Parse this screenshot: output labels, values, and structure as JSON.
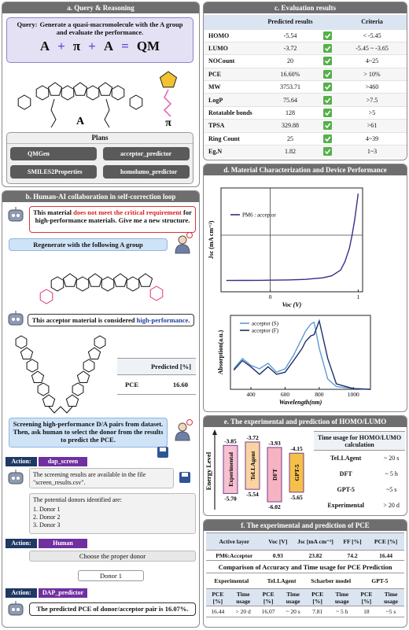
{
  "panel_a": {
    "title": "a. Query & Reasoning",
    "query": {
      "label": "Query:",
      "text": "Generate a quasi-macromolecule with the A group and evaluate the performance."
    },
    "equation": [
      "A",
      "+",
      "π",
      "+",
      "A",
      "=",
      "QM"
    ],
    "molecule_labels": {
      "acceptor": "A",
      "bridge": "π"
    },
    "plans": {
      "title": "Plans",
      "tools": [
        "QMGen",
        "acceptor_predictor",
        "SMILES2Properties",
        "homolumo_predictor"
      ]
    }
  },
  "panel_b": {
    "title": "b. Human-AI collaboration in self-correction loop",
    "msg1": [
      "This material ",
      "does not meet the critical requirement",
      " for high-performance materials. Give me a new structure."
    ],
    "msg2": "Regenerate with the following A  group",
    "msg3": [
      "This acceptor material is considered ",
      "high-performance",
      "."
    ],
    "predicted": {
      "header": "Predicted [%]",
      "row": [
        "PCE",
        "16.60"
      ]
    },
    "msg4": "Screening high-performance D/A pairs from dataset. Then, ask human to select the donor from the results  to predict the PCE.",
    "action1": {
      "label": "Action:",
      "name": "dap_screen"
    },
    "msg5": "The screening results are available in the file \"screen_results.csv\".",
    "msg6": {
      "intro": "The potential donors identified are:",
      "items": [
        "1. Donor 1",
        "2. Donor 2",
        "3. Donor 3"
      ]
    },
    "action2": {
      "label": "Action:",
      "name": "Human"
    },
    "msg7": "Choose the proper donor",
    "msg8": "Donor 1",
    "action3": {
      "label": "Action:",
      "name": "DAP_predictor"
    },
    "msg9": "The predicted PCE of donor/acceptor pair is 16.07%."
  },
  "panel_c": {
    "title": "c. Evaluation results",
    "headers": [
      "Predicted results",
      "Criteria"
    ],
    "rows": [
      [
        "HOMO",
        "-5.54",
        "< -5.45"
      ],
      [
        "LUMO",
        "-3.72",
        "-5.45 ~ -3.65"
      ],
      [
        "NOCount",
        "20",
        "4~25"
      ],
      [
        "PCE",
        "16.60%",
        "> 10%"
      ],
      [
        "MW",
        "3753.71",
        ">460"
      ],
      [
        "LogP",
        "75.64",
        ">7.5"
      ],
      [
        "Rotatable bonds",
        "128",
        ">5"
      ],
      [
        "TPSA",
        "329.88",
        ">61"
      ],
      [
        "Ring Count",
        "25",
        "4~39"
      ],
      [
        "Eg,N",
        "1.82",
        "1~3"
      ]
    ]
  },
  "panel_d": {
    "title": "d. Material Characterization and Device Performance",
    "jv_chart": {
      "type": "line",
      "x_label": "Voc (V)",
      "y_label": "Jsc (mA cm⁻²)",
      "x": [
        -0.5,
        -0.3,
        -0.1,
        0,
        0.2,
        0.4,
        0.6,
        0.7,
        0.8,
        0.85,
        0.9,
        0.93,
        0.96,
        1.0
      ],
      "series": [
        {
          "name": "PM6 : acceptor",
          "color": "#3b2a8a",
          "values": [
            -24.0,
            -23.95,
            -23.9,
            -23.82,
            -23.7,
            -23.4,
            -22.6,
            -21.5,
            -18.5,
            -14,
            -7,
            0,
            8,
            22
          ]
        }
      ],
      "xlim": [
        -0.56,
        1.05
      ],
      "ylim": [
        -30,
        25
      ],
      "xticks": [
        0,
        1
      ]
    },
    "abs_chart": {
      "type": "line",
      "x_label": "Wavelength(nm)",
      "y_label": "Absorption(a.u.)",
      "x": [
        300,
        350,
        400,
        450,
        500,
        550,
        600,
        650,
        700,
        720,
        750,
        770,
        800,
        850,
        900,
        1000,
        1100
      ],
      "series": [
        {
          "name": "acceptor (S)",
          "color": "#5b9bd5",
          "values": [
            0.3,
            0.45,
            0.35,
            0.3,
            0.38,
            0.25,
            0.3,
            0.5,
            0.75,
            0.85,
            0.95,
            0.98,
            0.6,
            0.15,
            0.04,
            0.01,
            0
          ]
        },
        {
          "name": "acceptor (F)",
          "color": "#1f2f6b",
          "values": [
            0.28,
            0.42,
            0.33,
            0.22,
            0.33,
            0.22,
            0.25,
            0.42,
            0.6,
            0.7,
            0.78,
            0.8,
            1.0,
            0.45,
            0.08,
            0.01,
            0
          ]
        }
      ],
      "xlim": [
        280,
        1100
      ],
      "ylim": [
        0,
        1.08
      ],
      "xticks": [
        400,
        600,
        800,
        1000
      ]
    }
  },
  "panel_e": {
    "title": "e. The experimental and prediction of HOMO/LUMO",
    "axis_label": "Energy Level",
    "levels": [
      {
        "name": "Experimental",
        "lumo": -3.85,
        "lumo_label": "-3.85",
        "homo": -5.7,
        "homo_label": "-5.70",
        "color": "#f6c1d0"
      },
      {
        "name": "TeLLAgent",
        "lumo": -3.72,
        "lumo_label": "-3.72",
        "homo": -5.54,
        "homo_label": "-5.54",
        "color": "#f9d3a0"
      },
      {
        "name": "DFT",
        "lumo": -3.93,
        "lumo_label": "-3.93",
        "homo": -6.02,
        "homo_label": "-6.02",
        "color": "#f6b3c2"
      },
      {
        "name": "GPT-5",
        "lumo": -4.15,
        "lumo_label": "-4.15",
        "homo": -5.65,
        "homo_label": "-5.65",
        "color": "#f5c04a"
      }
    ],
    "time_table": {
      "header": "Time usage for HOMO/LUMO calculation",
      "rows": [
        [
          "TeLLAgent",
          "~ 20 s"
        ],
        [
          "DFT",
          "~ 5 h"
        ],
        [
          "GPT-5",
          "~5 s"
        ],
        [
          "Experimental",
          "> 20 d"
        ]
      ]
    }
  },
  "panel_f": {
    "title": "f. The experimental and prediction of PCE",
    "device_table": {
      "headers": [
        "Active layer",
        "Voc [V]",
        "Jsc [mA cm⁻²]",
        "FF [%]",
        "PCE [%]"
      ],
      "row": [
        "PM6:Acceptor",
        "0.93",
        "23.82",
        "74.2",
        "16.44"
      ]
    },
    "comparison": {
      "title": "Comparison of Accuracy and Time usage for PCE Prediction",
      "groups": [
        "Experimental",
        "TeLLAgent",
        "Scharber model",
        "GPT-5"
      ],
      "subheaders": [
        "PCE [%]",
        "Time usage"
      ],
      "values": [
        "16.44",
        "> 20 d",
        "16.07",
        "~ 20 s",
        "7.81",
        "~ 5 h",
        "18",
        "~5 s"
      ]
    }
  }
}
